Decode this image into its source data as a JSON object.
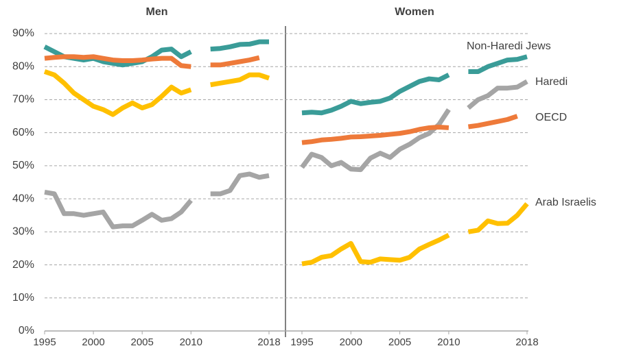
{
  "chart_data": {
    "type": "line",
    "panels": [
      "Men",
      "Women"
    ],
    "x": [
      1995,
      1996,
      1997,
      1998,
      1999,
      2000,
      2001,
      2002,
      2003,
      2004,
      2005,
      2006,
      2007,
      2008,
      2009,
      2010,
      2011,
      2012,
      2013,
      2014,
      2015,
      2016,
      2017,
      2018
    ],
    "xlim": [
      1995,
      2018
    ],
    "xticks": [
      1995,
      2000,
      2005,
      2010,
      2018
    ],
    "ylim": [
      0,
      90
    ],
    "yticks": [
      {
        "value": 0,
        "label": "0%"
      },
      {
        "value": 10,
        "label": "10%"
      },
      {
        "value": 20,
        "label": "20%"
      },
      {
        "value": 30,
        "label": "30%"
      },
      {
        "value": 40,
        "label": "40%"
      },
      {
        "value": 50,
        "label": "50%"
      },
      {
        "value": 60,
        "label": "60%"
      },
      {
        "value": 70,
        "label": "70%"
      },
      {
        "value": 80,
        "label": "80%"
      },
      {
        "value": 90,
        "label": "90%"
      }
    ],
    "grid": true,
    "series": [
      {
        "name": "Non-Haredi Jews",
        "color": "#3a9c98",
        "values": [
          [
            86,
            84.5,
            83,
            82.5,
            82,
            82.5,
            81.5,
            81,
            80.5,
            81,
            81.5,
            83,
            85,
            85.3,
            83,
            84.5,
            null,
            85.3,
            85.5,
            86,
            86.7,
            86.8,
            87.5,
            87.5
          ],
          [
            66,
            66.2,
            66,
            66.8,
            68,
            69.5,
            68.8,
            69.2,
            69.5,
            70.5,
            72.5,
            74,
            75.5,
            76.3,
            76,
            77.5,
            null,
            78.5,
            78.5,
            80,
            81,
            82,
            82.2,
            83
          ]
        ]
      },
      {
        "name": "Haredi",
        "color": "#a5a5a5",
        "values": [
          [
            42,
            41.5,
            35.5,
            35.5,
            35,
            35.5,
            36,
            31.5,
            31.8,
            31.8,
            33.5,
            35.3,
            33.5,
            34,
            36,
            39.5,
            null,
            41.5,
            41.5,
            42.5,
            47,
            47.5,
            46.5,
            47
          ],
          [
            49.5,
            53.5,
            52.5,
            50,
            51,
            49,
            48.8,
            52.3,
            53.8,
            52.5,
            55,
            56.5,
            58.5,
            59.8,
            62.5,
            67,
            null,
            67.5,
            70,
            71.2,
            73.5,
            73.5,
            73.8,
            75.5
          ]
        ]
      },
      {
        "name": "OECD",
        "color": "#ee7a3a",
        "values": [
          [
            82.5,
            82.8,
            83,
            83,
            82.8,
            83,
            82.5,
            82,
            81.8,
            81.8,
            82,
            82.3,
            82.5,
            82.5,
            80.3,
            80,
            null,
            80.5,
            80.5,
            81,
            81.5,
            82,
            82.7,
            null
          ],
          [
            57,
            57.3,
            57.8,
            58,
            58.3,
            58.7,
            58.8,
            59,
            59.2,
            59.5,
            59.8,
            60.3,
            61,
            61.5,
            61.7,
            61.5,
            null,
            61.8,
            62.2,
            62.8,
            63.4,
            64,
            65,
            null
          ]
        ]
      },
      {
        "name": "Arab Israelis",
        "color": "#ffc000",
        "values": [
          [
            78.5,
            77.5,
            75,
            72,
            70,
            68,
            67,
            65.5,
            67.5,
            69,
            67.5,
            68.5,
            71,
            73.8,
            72,
            73,
            null,
            74.5,
            75,
            75.5,
            76,
            77.5,
            77.5,
            76.5
          ],
          [
            20.3,
            20.8,
            22.3,
            22.8,
            24.8,
            26.5,
            21,
            20.8,
            21.8,
            21.6,
            21.4,
            22.3,
            24.8,
            26.2,
            27.5,
            29,
            null,
            30,
            30.5,
            33.3,
            32.5,
            32.6,
            35,
            38.5
          ]
        ]
      }
    ]
  }
}
